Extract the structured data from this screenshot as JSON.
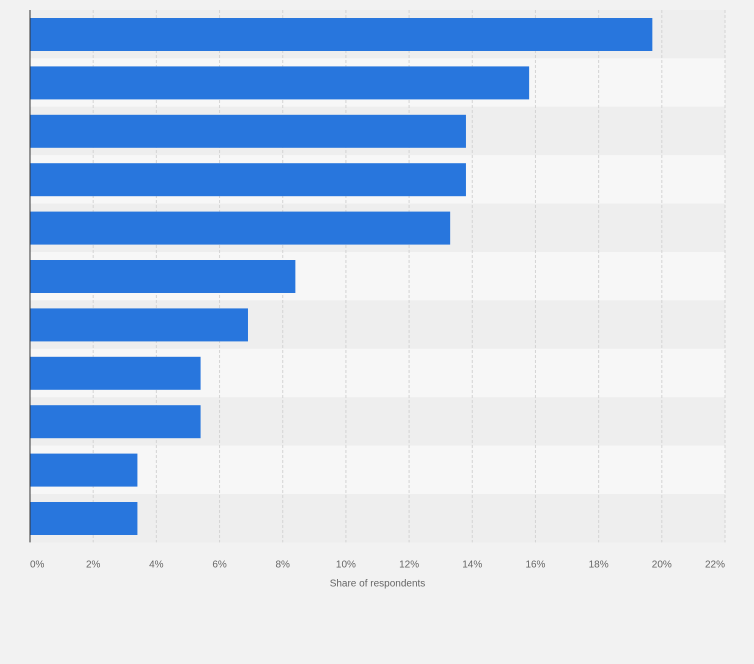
{
  "chart_data": {
    "type": "bar",
    "orientation": "horizontal",
    "categories": [
      "",
      "",
      "",
      "",
      "",
      "",
      "",
      "",
      "",
      "",
      ""
    ],
    "values": [
      19.7,
      15.8,
      13.8,
      13.8,
      13.3,
      8.4,
      6.9,
      5.4,
      5.4,
      3.4,
      3.4
    ],
    "xlabel": "Share of respondents",
    "ylabel": "",
    "xlim": [
      0,
      22
    ],
    "x_ticks": [
      "0%",
      "2%",
      "4%",
      "6%",
      "8%",
      "10%",
      "12%",
      "14%",
      "16%",
      "18%",
      "20%",
      "22%"
    ],
    "grid": true,
    "legend": "none",
    "colors": {
      "bar": "#2876dd",
      "band_dark": "#eeeeee",
      "band_light": "#f7f7f7",
      "grid": "#d4d4d4",
      "axis": "#333333",
      "text": "#666666",
      "background": "#f2f2f2"
    }
  }
}
